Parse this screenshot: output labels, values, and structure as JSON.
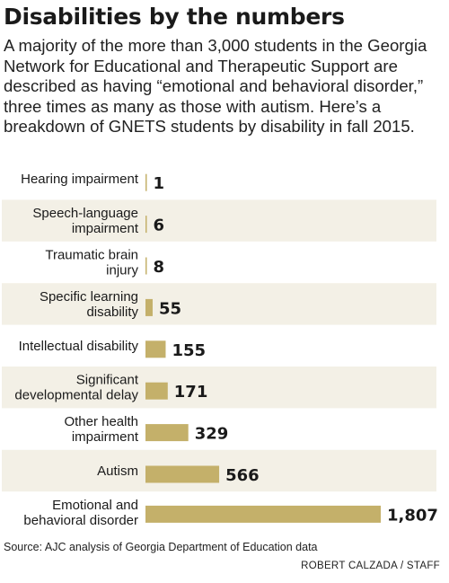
{
  "title": "Disabilities by the numbers",
  "subtitle": "A majority of the more than 3,000 students in the Georgia Network for Educational and Therapeutic Support are described as having “emotional and behavioral disorder,” three times as many as those with autism. Here’s a breakdown of GNETS students by disability in fall 2015.",
  "source": "Source: AJC analysis of Georgia Department of Education data",
  "credit": "ROBERT CALZADA / STAFF",
  "colors": {
    "bar": "#c4b06a",
    "band": "#f3f0e6",
    "text": "#1a1a1a"
  },
  "chart_data": {
    "type": "bar",
    "orientation": "horizontal",
    "categories": [
      [
        "Hearing impairment"
      ],
      [
        "Speech-language",
        "impairment"
      ],
      [
        "Traumatic brain",
        "injury"
      ],
      [
        "Specific learning",
        "disability"
      ],
      [
        "Intellectual disability"
      ],
      [
        "Significant",
        "developmental delay"
      ],
      [
        "Other health",
        "impairment"
      ],
      [
        "Autism"
      ],
      [
        "Emotional and",
        "behavioral disorder"
      ]
    ],
    "values": [
      1,
      6,
      8,
      55,
      155,
      171,
      329,
      566,
      1807
    ],
    "value_labels": [
      "1",
      "6",
      "8",
      "55",
      "155",
      "171",
      "329",
      "566",
      "1,807"
    ],
    "xlim": [
      0,
      1807
    ],
    "grid": false,
    "legend": "none"
  }
}
